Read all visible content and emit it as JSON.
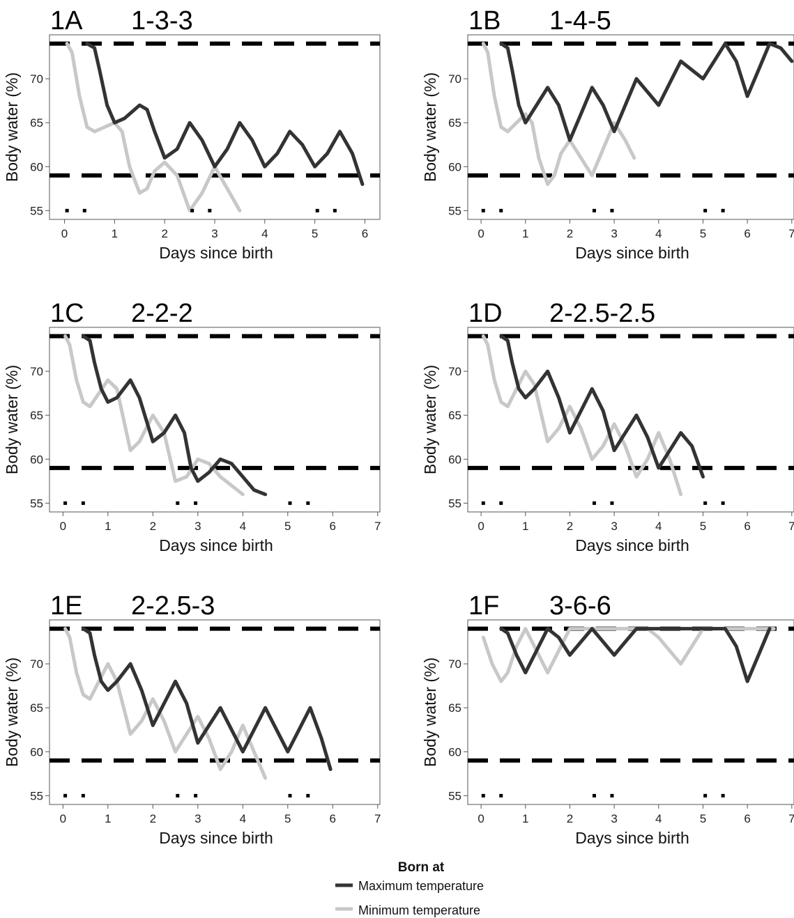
{
  "legend": {
    "title": "Born at",
    "entries": [
      {
        "label": "Maximum temperature",
        "color": "#333333"
      },
      {
        "label": "Minimum temperature",
        "color": "#c8c8c8"
      }
    ]
  },
  "colors": {
    "max_series": "#333333",
    "min_series": "#c8c8c8",
    "threshold": "#000000"
  },
  "chart_data": [
    {
      "panel": "1A",
      "title": "1-3-3",
      "type": "line",
      "xlabel": "Days since birth",
      "ylabel": "Body water (%)",
      "xlim": [
        -0.3,
        6.3
      ],
      "ylim": [
        54,
        75
      ],
      "xticks": [
        0,
        1,
        2,
        3,
        4,
        5,
        6
      ],
      "yticks": [
        55,
        60,
        65,
        70
      ],
      "thresholds": [
        74,
        59
      ],
      "markers": {
        "y": 55,
        "x": [
          0.05,
          0.4,
          2.55,
          2.9,
          5.05,
          5.4
        ]
      },
      "series": [
        {
          "name": "Maximum temperature",
          "x": [
            0.45,
            0.6,
            0.7,
            0.85,
            1.0,
            1.2,
            1.5,
            1.65,
            1.8,
            2.0,
            2.25,
            2.5,
            2.75,
            3.0,
            3.25,
            3.5,
            3.75,
            4.0,
            4.25,
            4.5,
            4.75,
            5.0,
            5.25,
            5.5,
            5.75,
            5.95
          ],
          "y": [
            74,
            73.5,
            71,
            67,
            65,
            65.5,
            67,
            66.5,
            64,
            61,
            62,
            65,
            63,
            60,
            62,
            65,
            63,
            60,
            61.5,
            64,
            62.5,
            60,
            61.5,
            64,
            61.5,
            58
          ]
        },
        {
          "name": "Minimum temperature",
          "x": [
            0.05,
            0.15,
            0.3,
            0.45,
            0.6,
            0.8,
            1.0,
            1.15,
            1.3,
            1.5,
            1.65,
            1.8,
            2.0,
            2.25,
            2.5,
            2.75,
            3.0,
            3.25,
            3.5
          ],
          "y": [
            74,
            73,
            68,
            64.5,
            64,
            64.5,
            65,
            64,
            60,
            57,
            57.5,
            59.5,
            60.5,
            59,
            55,
            57,
            60,
            57.5,
            55
          ]
        }
      ]
    },
    {
      "panel": "1B",
      "title": "1-4-5",
      "type": "line",
      "xlabel": "Days since birth",
      "ylabel": "Body water (%)",
      "xlim": [
        -0.3,
        7.05
      ],
      "ylim": [
        54,
        75
      ],
      "xticks": [
        0,
        1,
        2,
        3,
        4,
        5,
        6,
        7
      ],
      "yticks": [
        55,
        60,
        65,
        70
      ],
      "thresholds": [
        74,
        59
      ],
      "markers": {
        "y": 55,
        "x": [
          0.05,
          0.45,
          2.55,
          2.95,
          5.05,
          5.45
        ]
      },
      "series": [
        {
          "name": "Maximum temperature",
          "x": [
            0.45,
            0.6,
            0.7,
            0.85,
            1.0,
            1.25,
            1.5,
            1.75,
            2.0,
            2.25,
            2.5,
            2.75,
            3.0,
            3.25,
            3.5,
            3.75,
            4.0,
            4.25,
            4.5,
            4.75,
            5.0,
            5.25,
            5.5,
            5.75,
            6.0,
            6.25,
            6.5,
            6.75,
            7.0
          ],
          "y": [
            74,
            73.5,
            71,
            67,
            65,
            67,
            69,
            67,
            63,
            66,
            69,
            67,
            64,
            67,
            70,
            68.5,
            67,
            69.5,
            72,
            71,
            70,
            72,
            74,
            72,
            68,
            71,
            74,
            73.5,
            72
          ]
        },
        {
          "name": "Minimum temperature",
          "x": [
            0.05,
            0.15,
            0.3,
            0.45,
            0.6,
            0.8,
            1.0,
            1.15,
            1.3,
            1.5,
            1.65,
            1.8,
            2.0,
            2.25,
            2.5,
            2.75,
            3.0,
            3.25,
            3.45
          ],
          "y": [
            74,
            73,
            68,
            64.5,
            64,
            65,
            66,
            65,
            61,
            58,
            59,
            61.5,
            63,
            61,
            59,
            62,
            65,
            63,
            61
          ]
        }
      ]
    },
    {
      "panel": "1C",
      "title": "2-2-2",
      "type": "line",
      "xlabel": "Days since birth",
      "ylabel": "Body water (%)",
      "xlim": [
        -0.3,
        7.05
      ],
      "ylim": [
        54,
        75
      ],
      "xticks": [
        0,
        1,
        2,
        3,
        4,
        5,
        6,
        7
      ],
      "yticks": [
        55,
        60,
        65,
        70
      ],
      "thresholds": [
        74,
        59
      ],
      "markers": {
        "y": 55,
        "x": [
          0.05,
          0.45,
          2.55,
          2.95,
          5.05,
          5.45
        ]
      },
      "series": [
        {
          "name": "Maximum temperature",
          "x": [
            0.45,
            0.6,
            0.7,
            0.85,
            1.0,
            1.2,
            1.5,
            1.7,
            2.0,
            2.25,
            2.5,
            2.7,
            2.85,
            3.0,
            3.25,
            3.5,
            3.75,
            4.0,
            4.25,
            4.5
          ],
          "y": [
            74,
            73.5,
            71,
            68,
            66.5,
            67,
            69,
            67,
            62,
            63,
            65,
            63,
            59,
            57.5,
            58.5,
            60,
            59.5,
            58,
            56.5,
            56
          ]
        },
        {
          "name": "Minimum temperature",
          "x": [
            0.05,
            0.15,
            0.3,
            0.45,
            0.6,
            0.8,
            1.0,
            1.2,
            1.5,
            1.7,
            2.0,
            2.25,
            2.5,
            2.75,
            3.0,
            3.25,
            3.5,
            3.75,
            4.0
          ],
          "y": [
            74,
            73,
            69,
            66.5,
            66,
            67.5,
            69,
            68,
            61,
            62,
            65,
            63,
            57.5,
            58,
            60,
            59.5,
            58,
            57,
            56
          ]
        }
      ]
    },
    {
      "panel": "1D",
      "title": "2-2.5-2.5",
      "type": "line",
      "xlabel": "Days since birth",
      "ylabel": "Body water (%)",
      "xlim": [
        -0.3,
        7.05
      ],
      "ylim": [
        54,
        75
      ],
      "xticks": [
        0,
        1,
        2,
        3,
        4,
        5,
        6,
        7
      ],
      "yticks": [
        55,
        60,
        65,
        70
      ],
      "thresholds": [
        74,
        59
      ],
      "markers": {
        "y": 55,
        "x": [
          0.05,
          0.45,
          2.55,
          2.95,
          5.05,
          5.45
        ]
      },
      "series": [
        {
          "name": "Maximum temperature",
          "x": [
            0.45,
            0.6,
            0.7,
            0.85,
            1.0,
            1.2,
            1.5,
            1.75,
            2.0,
            2.25,
            2.5,
            2.75,
            3.0,
            3.25,
            3.5,
            3.75,
            4.0,
            4.25,
            4.5,
            4.75,
            5.0
          ],
          "y": [
            74,
            73.5,
            71,
            68,
            67,
            68,
            70,
            67,
            63,
            65.5,
            68,
            65.5,
            61,
            63,
            65,
            62.5,
            59,
            61,
            63,
            61.5,
            58
          ]
        },
        {
          "name": "Minimum temperature",
          "x": [
            0.05,
            0.15,
            0.3,
            0.45,
            0.6,
            0.8,
            1.0,
            1.2,
            1.5,
            1.75,
            2.0,
            2.25,
            2.5,
            2.75,
            3.0,
            3.25,
            3.5,
            3.75,
            4.0,
            4.25,
            4.5
          ],
          "y": [
            74,
            73,
            69,
            66.5,
            66,
            68,
            70,
            68.5,
            62,
            63.5,
            66,
            63.5,
            60,
            61.5,
            64,
            61.5,
            58,
            60,
            63,
            60,
            56
          ]
        }
      ]
    },
    {
      "panel": "1E",
      "title": "2-2.5-3",
      "type": "line",
      "xlabel": "Days since birth",
      "ylabel": "Body water (%)",
      "xlim": [
        -0.3,
        7.05
      ],
      "ylim": [
        54,
        75
      ],
      "xticks": [
        0,
        1,
        2,
        3,
        4,
        5,
        6,
        7
      ],
      "yticks": [
        55,
        60,
        65,
        70
      ],
      "thresholds": [
        74,
        59
      ],
      "markers": {
        "y": 55,
        "x": [
          0.05,
          0.45,
          2.55,
          2.95,
          5.05,
          5.45
        ]
      },
      "series": [
        {
          "name": "Maximum temperature",
          "x": [
            0.45,
            0.6,
            0.7,
            0.85,
            1.0,
            1.2,
            1.5,
            1.75,
            2.0,
            2.25,
            2.5,
            2.75,
            3.0,
            3.25,
            3.5,
            3.75,
            4.0,
            4.25,
            4.5,
            4.75,
            5.0,
            5.25,
            5.5,
            5.75,
            5.95
          ],
          "y": [
            74,
            73.5,
            71,
            68,
            67,
            68,
            70,
            67,
            63,
            65.5,
            68,
            65.5,
            61,
            63,
            65,
            62.5,
            60,
            62.5,
            65,
            62.5,
            60,
            62.5,
            65,
            61.5,
            58
          ]
        },
        {
          "name": "Minimum temperature",
          "x": [
            0.05,
            0.15,
            0.3,
            0.45,
            0.6,
            0.8,
            1.0,
            1.2,
            1.5,
            1.75,
            2.0,
            2.25,
            2.5,
            2.75,
            3.0,
            3.25,
            3.5,
            3.75,
            4.0,
            4.25,
            4.5
          ],
          "y": [
            74,
            73,
            69,
            66.5,
            66,
            68,
            70,
            68,
            62,
            63.5,
            66,
            63.5,
            60,
            62,
            64,
            61.5,
            58,
            60,
            63,
            60,
            57
          ]
        }
      ]
    },
    {
      "panel": "1F",
      "title": "3-6-6",
      "type": "line",
      "xlabel": "Days since birth",
      "ylabel": "Body water (%)",
      "xlim": [
        -0.3,
        7.05
      ],
      "ylim": [
        54,
        75
      ],
      "xticks": [
        0,
        1,
        2,
        3,
        4,
        5,
        6,
        7
      ],
      "yticks": [
        55,
        60,
        65,
        70
      ],
      "thresholds": [
        74,
        59
      ],
      "markers": {
        "y": 55,
        "x": [
          0.05,
          0.45,
          2.55,
          2.95,
          5.05,
          5.45
        ]
      },
      "series": [
        {
          "name": "Maximum temperature",
          "x": [
            0.45,
            0.6,
            0.8,
            1.0,
            1.2,
            1.5,
            1.75,
            2.0,
            2.25,
            2.5,
            2.75,
            3.0,
            3.25,
            3.5,
            3.75,
            4.0,
            4.5,
            5.0,
            5.5,
            5.75,
            6.0,
            6.25,
            6.5
          ],
          "y": [
            74,
            73.5,
            71,
            69,
            71,
            74,
            73,
            71,
            72.5,
            74,
            72.5,
            71,
            72.5,
            74,
            74,
            74,
            74,
            74,
            74,
            72,
            68,
            71,
            74
          ]
        },
        {
          "name": "Minimum temperature",
          "x": [
            0.05,
            0.25,
            0.45,
            0.6,
            0.8,
            1.0,
            1.25,
            1.5,
            1.75,
            2.0,
            2.25,
            2.5,
            2.75,
            3.0,
            3.5,
            3.75,
            4.0,
            4.25,
            4.5,
            4.75,
            5.0,
            5.5,
            6.0,
            6.5,
            6.6
          ],
          "y": [
            73,
            70,
            68,
            69,
            72,
            74,
            71.5,
            69,
            71.5,
            74,
            74,
            74,
            74,
            74,
            74,
            74,
            73,
            71.5,
            70,
            72,
            74,
            74,
            74,
            74,
            74
          ]
        }
      ]
    }
  ]
}
